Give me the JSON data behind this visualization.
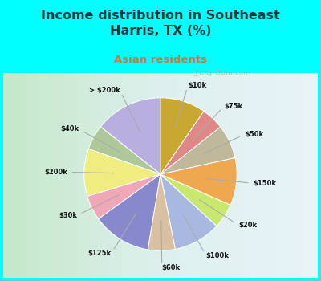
{
  "title": "Income distribution in Southeast\nHarris, TX (%)",
  "subtitle": "Asian residents",
  "title_color": "#1a3a3a",
  "subtitle_color": "#cc7744",
  "background_color": "#00ffff",
  "labels": [
    "> $200k",
    "$40k",
    "$200k",
    "$30k",
    "$125k",
    "$60k",
    "$100k",
    "$20k",
    "$150k",
    "$50k",
    "$75k",
    "$10k"
  ],
  "sizes": [
    15.0,
    5.5,
    10.5,
    5.5,
    13.0,
    6.0,
    10.5,
    5.5,
    10.5,
    7.5,
    5.0,
    10.0
  ],
  "colors": [
    "#b8aee0",
    "#aec89a",
    "#f0ec80",
    "#f0a8b8",
    "#8888cc",
    "#d8c0a0",
    "#a8b8e0",
    "#c8e870",
    "#f0a850",
    "#c0b89a",
    "#e08888",
    "#c8a830"
  ],
  "startangle": 90,
  "watermark": "ⓘ City-Data.com"
}
